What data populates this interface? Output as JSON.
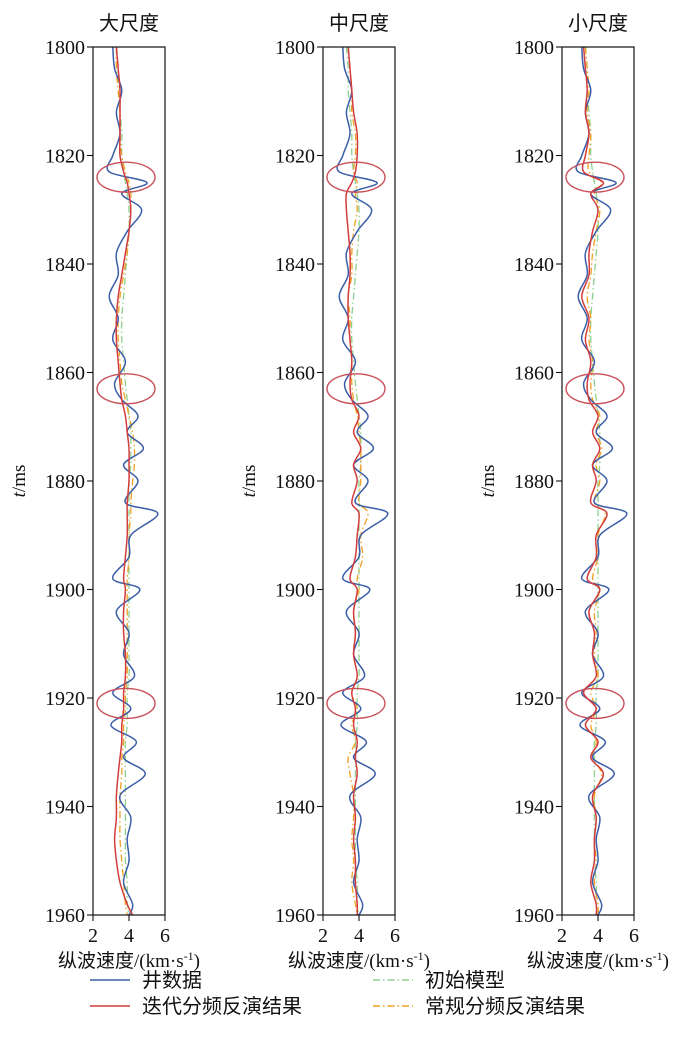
{
  "chart_data": {
    "type": "line",
    "layout": "three vertical well-log panels, depth on y axis (increasing downward)",
    "y_axis": {
      "label_italic": "t",
      "label_rest": "/ms",
      "lim": [
        1800,
        1960
      ],
      "ticks": [
        1800,
        1820,
        1840,
        1860,
        1880,
        1900,
        1920,
        1940,
        1960
      ],
      "inverted": true
    },
    "x_axis": {
      "label_main": "纵波速度/(km·s",
      "label_sup": "-1",
      "label_close": ")",
      "lim": [
        2,
        6
      ],
      "ticks": [
        2,
        4,
        6
      ]
    },
    "legend": {
      "placement": "bottom",
      "entries": [
        {
          "key": "well",
          "label": "井数据",
          "color": "#3b5ea8",
          "dash": "solid"
        },
        {
          "key": "iter",
          "label": "迭代分频反演结果",
          "color": "#d23c3c",
          "dash": "solid"
        },
        {
          "key": "init",
          "label": "初始模型",
          "color": "#8fcf8f",
          "dash": "dashdot"
        },
        {
          "key": "conv",
          "label": "常规分频反演结果",
          "color": "#f0a020",
          "dash": "dashdot"
        }
      ]
    },
    "highlight_ellipses_t": [
      1824,
      1863,
      1921
    ],
    "depth": [
      1800,
      1804,
      1808,
      1812,
      1816,
      1820,
      1823,
      1825,
      1827,
      1830,
      1834,
      1838,
      1842,
      1846,
      1850,
      1854,
      1858,
      1862,
      1865,
      1868,
      1871,
      1874,
      1877,
      1880,
      1884,
      1886,
      1890,
      1894,
      1898,
      1900,
      1904,
      1908,
      1912,
      1916,
      1919,
      1922,
      1925,
      1928,
      1931,
      1934,
      1938,
      1942,
      1946,
      1950,
      1954,
      1958,
      1960
    ],
    "well_values": [
      3.1,
      3.2,
      3.6,
      3.3,
      3.5,
      3.1,
      2.9,
      5.0,
      3.6,
      4.7,
      3.9,
      3.3,
      3.4,
      2.9,
      3.4,
      3.1,
      3.8,
      3.2,
      3.6,
      4.5,
      3.9,
      4.8,
      3.7,
      4.5,
      3.8,
      5.6,
      4.1,
      4.0,
      3.1,
      4.6,
      3.3,
      4.0,
      3.7,
      4.3,
      3.1,
      4.1,
      3.0,
      4.4,
      3.7,
      4.9,
      3.5,
      4.1,
      3.9,
      4.0,
      3.7,
      4.2,
      4.0
    ],
    "panels": [
      {
        "title": "大尺度",
        "iter_values": [
          3.3,
          3.4,
          3.5,
          3.5,
          3.5,
          3.5,
          3.7,
          3.9,
          4.0,
          4.1,
          4.0,
          3.8,
          3.6,
          3.4,
          3.3,
          3.3,
          3.4,
          3.5,
          3.6,
          3.8,
          3.9,
          4.0,
          4.0,
          4.0,
          3.9,
          3.9,
          3.9,
          3.8,
          3.7,
          3.8,
          3.7,
          3.7,
          3.8,
          3.8,
          3.7,
          3.7,
          3.6,
          3.6,
          3.5,
          3.4,
          3.3,
          3.3,
          3.2,
          3.3,
          3.5,
          3.9,
          4.2
        ],
        "init_values": [
          3.3,
          3.4,
          3.4,
          3.5,
          3.6,
          3.6,
          3.7,
          3.8,
          3.9,
          4.0,
          4.0,
          3.9,
          3.8,
          3.7,
          3.6,
          3.6,
          3.7,
          3.8,
          3.9,
          4.0,
          4.1,
          4.1,
          4.1,
          4.0,
          4.0,
          4.0,
          4.0,
          4.0,
          4.0,
          4.0,
          4.0,
          4.0,
          4.0,
          4.0,
          3.9,
          3.9,
          3.9,
          3.8,
          3.8,
          3.8,
          3.8,
          3.8,
          3.8,
          3.8,
          3.9,
          3.9,
          4.0
        ],
        "conv_values": [
          3.3,
          3.3,
          3.4,
          3.5,
          3.5,
          3.6,
          3.8,
          4.0,
          4.1,
          4.1,
          4.0,
          3.9,
          3.7,
          3.5,
          3.4,
          3.4,
          3.5,
          3.6,
          3.8,
          4.0,
          4.2,
          4.3,
          4.3,
          4.2,
          4.1,
          4.1,
          4.0,
          4.0,
          3.9,
          3.9,
          3.9,
          3.9,
          3.9,
          3.9,
          3.8,
          3.8,
          3.7,
          3.7,
          3.6,
          3.6,
          3.5,
          3.5,
          3.5,
          3.6,
          3.7,
          3.8,
          3.9
        ]
      },
      {
        "title": "中尺度",
        "iter_values": [
          3.4,
          3.5,
          3.6,
          3.7,
          3.9,
          3.9,
          3.8,
          3.6,
          3.3,
          3.3,
          3.4,
          3.5,
          3.5,
          3.4,
          3.4,
          3.5,
          3.6,
          3.5,
          3.6,
          4.0,
          3.7,
          4.1,
          3.7,
          3.9,
          3.6,
          4.0,
          3.9,
          3.8,
          3.5,
          3.9,
          3.7,
          3.8,
          3.7,
          3.9,
          3.6,
          3.8,
          3.7,
          3.9,
          3.8,
          3.9,
          3.7,
          3.8,
          3.7,
          3.8,
          3.8,
          3.9,
          3.9
        ],
        "init_values": [
          3.3,
          3.4,
          3.4,
          3.5,
          3.6,
          3.6,
          3.7,
          3.8,
          3.9,
          4.0,
          4.0,
          3.9,
          3.8,
          3.7,
          3.6,
          3.6,
          3.7,
          3.8,
          3.9,
          4.0,
          4.1,
          4.1,
          4.1,
          4.0,
          4.0,
          4.0,
          4.0,
          4.0,
          4.0,
          4.0,
          4.0,
          4.0,
          4.0,
          4.0,
          3.9,
          3.9,
          3.9,
          3.8,
          3.8,
          3.8,
          3.8,
          3.8,
          3.8,
          3.8,
          3.9,
          3.9,
          4.0
        ],
        "conv_values": [
          3.4,
          3.5,
          3.6,
          3.6,
          3.8,
          3.8,
          3.7,
          3.9,
          3.8,
          3.9,
          3.7,
          3.6,
          3.6,
          3.4,
          3.5,
          3.5,
          3.6,
          3.6,
          3.7,
          3.9,
          4.0,
          4.1,
          4.1,
          4.1,
          4.0,
          4.5,
          4.1,
          4.2,
          3.9,
          4.0,
          3.7,
          3.8,
          3.7,
          3.9,
          3.6,
          3.9,
          3.6,
          3.8,
          3.4,
          3.5,
          3.7,
          3.7,
          3.6,
          3.7,
          3.6,
          3.8,
          3.9
        ]
      },
      {
        "title": "小尺度",
        "iter_values": [
          3.2,
          3.3,
          3.4,
          3.3,
          3.5,
          3.3,
          3.2,
          4.3,
          3.6,
          4.0,
          3.7,
          3.5,
          3.5,
          3.1,
          3.5,
          3.3,
          3.6,
          3.4,
          3.5,
          4.0,
          3.7,
          4.1,
          3.7,
          3.9,
          3.6,
          4.5,
          3.9,
          3.9,
          3.4,
          4.1,
          3.5,
          3.8,
          3.7,
          3.9,
          3.2,
          3.9,
          3.3,
          4.0,
          3.6,
          4.3,
          3.7,
          3.9,
          3.8,
          3.8,
          3.6,
          3.9,
          3.9
        ],
        "init_values": [
          3.3,
          3.4,
          3.4,
          3.5,
          3.6,
          3.6,
          3.7,
          3.8,
          3.9,
          4.0,
          4.0,
          3.9,
          3.8,
          3.7,
          3.6,
          3.6,
          3.7,
          3.8,
          3.9,
          4.0,
          4.1,
          4.1,
          4.1,
          4.0,
          4.0,
          4.0,
          4.0,
          4.0,
          4.0,
          4.0,
          4.0,
          4.0,
          4.0,
          4.0,
          3.9,
          3.9,
          3.9,
          3.8,
          3.8,
          3.8,
          3.8,
          3.8,
          3.8,
          3.8,
          3.9,
          3.9,
          4.0
        ],
        "conv_values": [
          3.3,
          3.4,
          3.5,
          3.4,
          3.6,
          3.5,
          3.5,
          4.2,
          3.8,
          4.1,
          3.9,
          3.7,
          3.6,
          3.4,
          3.6,
          3.5,
          3.7,
          3.6,
          3.7,
          4.1,
          3.9,
          4.2,
          3.9,
          4.1,
          3.8,
          4.4,
          4.0,
          4.0,
          3.7,
          4.1,
          3.8,
          3.9,
          3.8,
          4.0,
          3.6,
          3.9,
          3.6,
          3.9,
          3.7,
          4.2,
          3.8,
          3.9,
          3.8,
          3.9,
          3.8,
          4.0,
          4.0
        ]
      }
    ]
  }
}
